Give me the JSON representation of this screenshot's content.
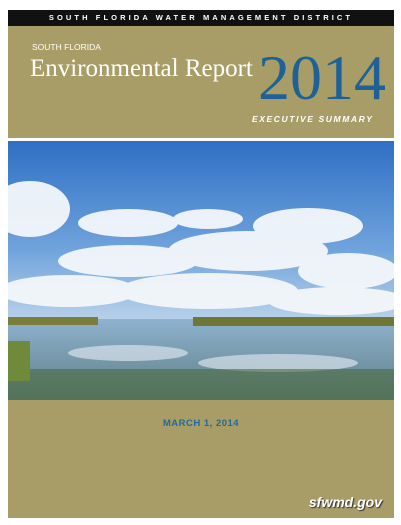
{
  "header": {
    "agency": "SOUTH FLORIDA WATER MANAGEMENT DISTRICT",
    "region": "SOUTH FLORIDA",
    "title": "Environmental Report",
    "year": "2014",
    "subtitle": "EXECUTIVE SUMMARY"
  },
  "footer": {
    "date": "MARCH 1, 2014",
    "website": "sfwmd.gov"
  }
}
